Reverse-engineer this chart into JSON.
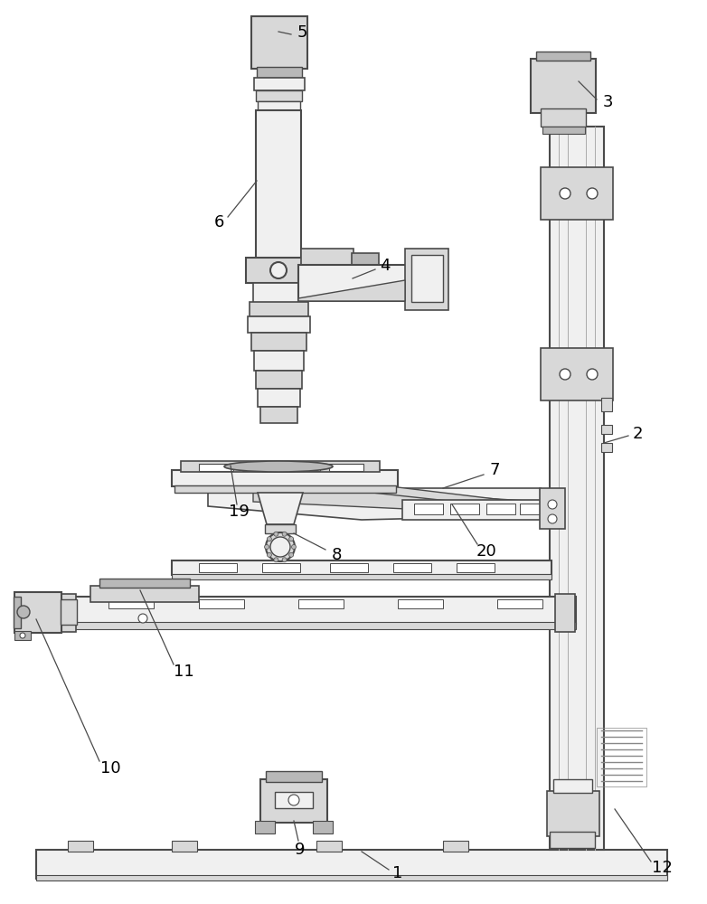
{
  "bg_color": "#ffffff",
  "line_color": "#4a4a4a",
  "fill_light": "#f0f0f0",
  "fill_mid": "#d8d8d8",
  "fill_dark": "#b8b8b8",
  "figsize": [
    7.82,
    10.0
  ],
  "dpi": 100
}
